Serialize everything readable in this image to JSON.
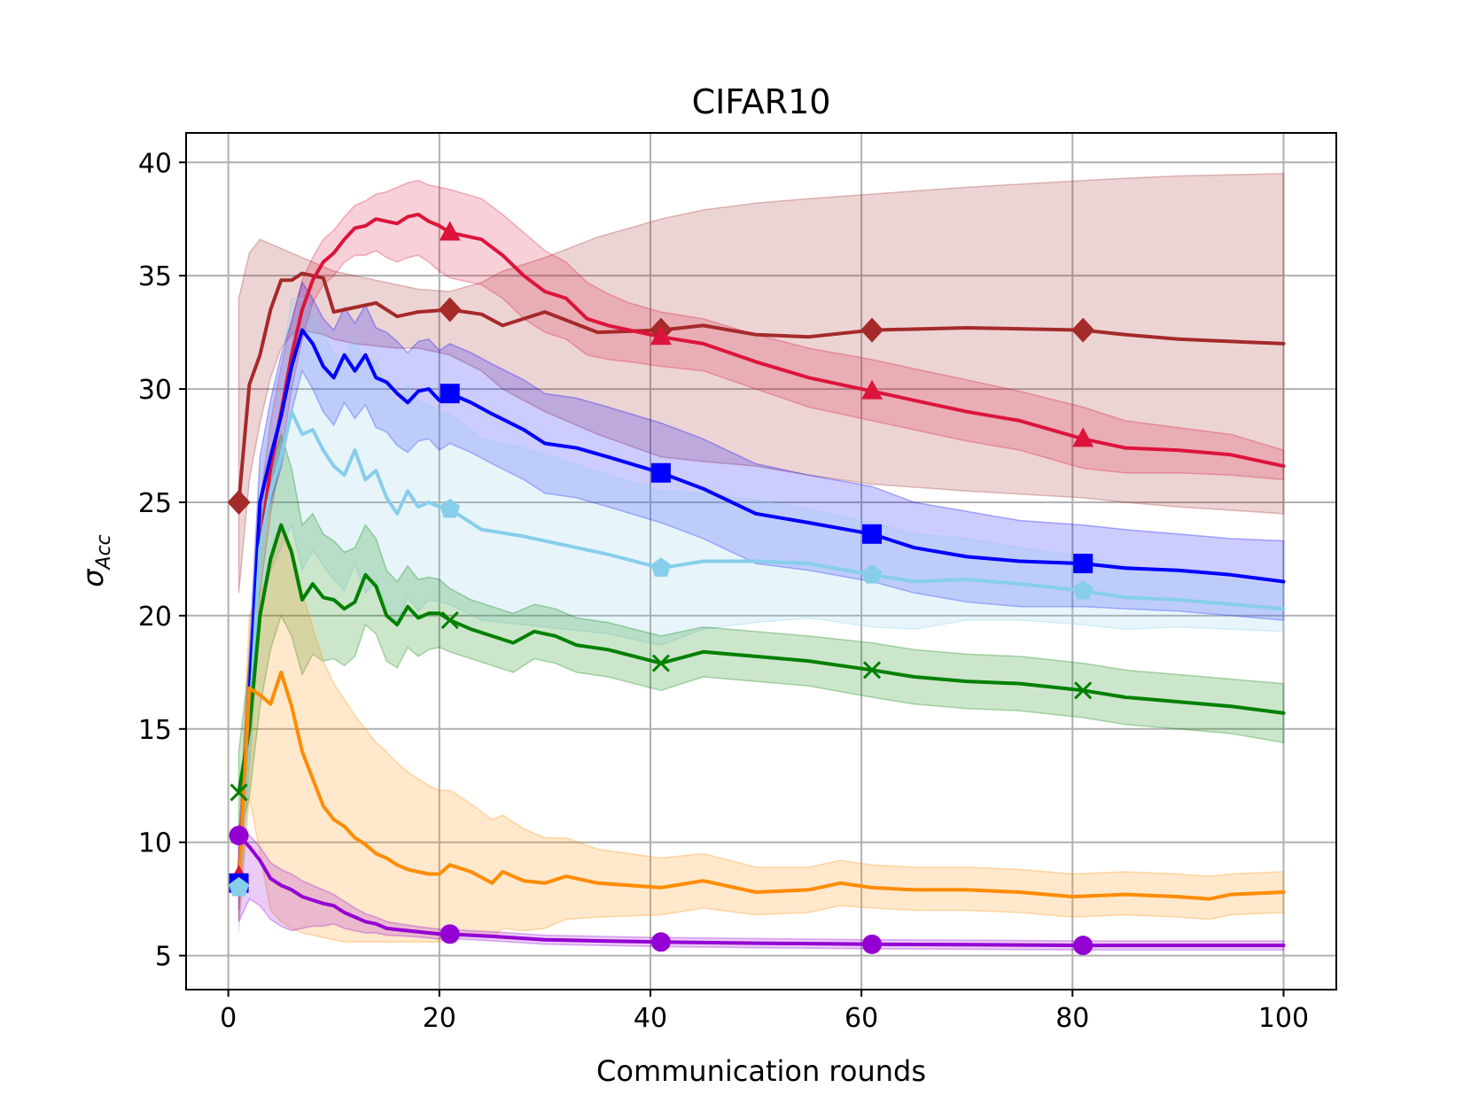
{
  "chart_data": {
    "type": "line",
    "title": "CIFAR10",
    "xlabel": "Communication rounds",
    "ylabel": "σ",
    "ylabel_subscript": "Acc",
    "xlim": [
      -4,
      105
    ],
    "ylim": [
      3.5,
      41.3
    ],
    "xticks": [
      0,
      20,
      40,
      60,
      80,
      100
    ],
    "yticks": [
      5,
      10,
      15,
      20,
      25,
      30,
      35,
      40
    ],
    "grid": true,
    "marker_x": [
      1,
      21,
      41,
      61,
      81
    ],
    "series": [
      {
        "name": "dark-red-diamond",
        "color": "#a52a2a",
        "marker": "diamond",
        "x": [
          1,
          2,
          3,
          4,
          5,
          6,
          7,
          8,
          9,
          10,
          12,
          14,
          16,
          18,
          21,
          24,
          26,
          30,
          35,
          41,
          45,
          50,
          55,
          61,
          70,
          81,
          85,
          90,
          100
        ],
        "y": [
          25,
          30.2,
          31.5,
          33.5,
          34.8,
          34.8,
          35.1,
          35,
          34.9,
          33.4,
          33.6,
          33.8,
          33.2,
          33.4,
          33.5,
          33.3,
          32.8,
          33.4,
          32.5,
          32.6,
          32.8,
          32.4,
          32.3,
          32.6,
          32.7,
          32.6,
          32.4,
          32.2,
          32
        ],
        "upper": [
          34,
          36,
          36.6,
          36.4,
          36.2,
          36,
          35.8,
          35.6,
          35.4,
          35.2,
          35,
          34.8,
          34.6,
          34.4,
          34.3,
          34.7,
          35.2,
          35.8,
          36.7,
          37.5,
          37.9,
          38.2,
          38.4,
          38.6,
          38.9,
          39.2,
          39.3,
          39.4,
          39.5
        ],
        "lower": [
          21,
          26,
          28.5,
          30.5,
          31.8,
          32.4,
          32.6,
          32.5,
          32.4,
          32.2,
          32,
          31.9,
          31.8,
          31.8,
          31.5,
          30.8,
          30,
          29,
          28,
          27,
          26.8,
          26.6,
          26.2,
          25.8,
          25.5,
          25.2,
          25,
          24.8,
          24.5
        ]
      },
      {
        "name": "crimson-triangle",
        "color": "#dc143c",
        "marker": "triangle",
        "x": [
          1,
          2,
          3,
          4,
          5,
          6,
          7,
          8,
          9,
          10,
          11,
          12,
          13,
          14,
          15,
          16,
          17,
          18,
          19,
          20,
          21,
          24,
          26,
          28,
          30,
          32,
          34,
          36,
          38,
          41,
          45,
          50,
          55,
          61,
          65,
          70,
          75,
          81,
          85,
          90,
          95,
          100
        ],
        "y": [
          8.5,
          16,
          23,
          26.5,
          29,
          31.5,
          33.5,
          34.8,
          35.6,
          36,
          36.6,
          37.1,
          37.2,
          37.5,
          37.4,
          37.3,
          37.6,
          37.7,
          37.4,
          37.2,
          36.9,
          36.6,
          35.9,
          35,
          34.3,
          34,
          33.1,
          32.8,
          32.6,
          32.3,
          32,
          31.2,
          30.5,
          29.9,
          29.5,
          29,
          28.6,
          27.8,
          27.4,
          27.3,
          27.1,
          26.6
        ],
        "upper": [
          10,
          18,
          25,
          28.5,
          31,
          33,
          34.8,
          35.8,
          36.6,
          37,
          37.6,
          38.1,
          38.3,
          38.6,
          38.7,
          38.9,
          39.1,
          39.2,
          39,
          38.9,
          38.8,
          38.4,
          37.7,
          36.9,
          36.1,
          35.6,
          34.7,
          34.2,
          33.8,
          33.4,
          33.1,
          32.4,
          31.8,
          31.3,
          30.9,
          30.4,
          29.9,
          29.2,
          28.6,
          28.3,
          28,
          27.3
        ],
        "lower": [
          7,
          14,
          21,
          24.5,
          27,
          30,
          32.2,
          33.8,
          34.6,
          35,
          35.6,
          35.9,
          35.9,
          36.1,
          35.8,
          35.6,
          35.8,
          35.9,
          35.6,
          35.2,
          34.9,
          34.6,
          34,
          33.1,
          32.5,
          32.2,
          31.5,
          31.3,
          31.2,
          31,
          30.8,
          30,
          29.2,
          28.6,
          28.2,
          27.7,
          27.3,
          26.5,
          26.3,
          26.3,
          26.2,
          26
        ]
      },
      {
        "name": "blue-square",
        "color": "#0000ff",
        "marker": "square",
        "x": [
          1,
          2,
          3,
          4,
          5,
          6,
          7,
          8,
          9,
          10,
          11,
          12,
          13,
          14,
          15,
          16,
          17,
          18,
          19,
          20,
          21,
          23,
          25,
          28,
          30,
          33,
          36,
          41,
          45,
          50,
          55,
          61,
          65,
          70,
          75,
          81,
          85,
          90,
          95,
          100
        ],
        "y": [
          8.2,
          16.5,
          25,
          27,
          28.8,
          31,
          32.6,
          32,
          31,
          30.5,
          31.5,
          30.8,
          31.5,
          30.5,
          30.3,
          29.8,
          29.4,
          29.9,
          30,
          29.5,
          29.8,
          29.4,
          28.9,
          28.2,
          27.6,
          27.4,
          27,
          26.3,
          25.6,
          24.5,
          24.1,
          23.6,
          23,
          22.6,
          22.4,
          22.3,
          22.1,
          22,
          21.8,
          21.5
        ],
        "upper": [
          10,
          18.5,
          27,
          29.5,
          31.5,
          33,
          34.7,
          34,
          33.1,
          32.6,
          33.6,
          32.9,
          33.7,
          32.7,
          32.5,
          32.1,
          31.6,
          32.1,
          32.2,
          31.7,
          32,
          31.6,
          31.1,
          30.4,
          29.8,
          29.6,
          29.2,
          28.5,
          27.8,
          26.7,
          26.2,
          25.7,
          25,
          24.6,
          24.2,
          24,
          23.8,
          23.6,
          23.4,
          23.3
        ],
        "lower": [
          7,
          15,
          23,
          25,
          26.5,
          29,
          30.8,
          30,
          29,
          28.4,
          29.4,
          28.7,
          29.3,
          28.3,
          28.1,
          27.5,
          27.2,
          27.7,
          27.8,
          27.3,
          27.6,
          27.2,
          26.7,
          26,
          25.4,
          25.2,
          24.8,
          24.1,
          23.4,
          22.3,
          22,
          21.5,
          21,
          20.6,
          20.4,
          20.4,
          20.3,
          20.2,
          20,
          19.8
        ]
      },
      {
        "name": "skyblue-pentagon",
        "color": "#87ceeb",
        "marker": "pentagon",
        "x": [
          1,
          2,
          3,
          4,
          5,
          6,
          7,
          8,
          9,
          10,
          11,
          12,
          13,
          14,
          15,
          16,
          17,
          18,
          19,
          20,
          21,
          24,
          28,
          32,
          36,
          41,
          45,
          50,
          55,
          61,
          65,
          70,
          75,
          81,
          85,
          90,
          95,
          100
        ],
        "y": [
          8,
          15,
          23,
          25.5,
          27,
          29,
          28,
          28.2,
          27.3,
          26.6,
          26.2,
          27.3,
          26,
          26.4,
          25.2,
          24.5,
          25.5,
          24.8,
          25,
          24.8,
          24.7,
          23.8,
          23.5,
          23.1,
          22.7,
          22.1,
          22.4,
          22.4,
          22.3,
          21.8,
          21.5,
          21.6,
          21.4,
          21.1,
          20.8,
          20.7,
          20.5,
          20.3
        ],
        "upper": [
          10,
          17,
          26,
          29,
          31,
          34,
          34,
          33.5,
          32.4,
          31.6,
          31.3,
          32.3,
          31,
          31.3,
          30,
          29.3,
          30.2,
          29.4,
          29.3,
          29,
          28.9,
          27.8,
          27.4,
          26.8,
          26.2,
          25.5,
          25.4,
          25.1,
          24.7,
          24.1,
          23.6,
          23.4,
          23,
          22.6,
          22.2,
          21.9,
          21.6,
          21.3
        ],
        "lower": [
          6,
          13,
          20,
          22,
          23,
          24,
          22,
          22.9,
          22.2,
          21.6,
          21.1,
          22.3,
          21,
          21.5,
          20.4,
          19.7,
          20.8,
          20.2,
          20.7,
          20.6,
          20.5,
          19.8,
          19.6,
          19.4,
          19.2,
          18.7,
          19.4,
          19.7,
          19.9,
          19.5,
          19.4,
          19.8,
          19.8,
          19.6,
          19.4,
          19.5,
          19.4,
          19.3
        ]
      },
      {
        "name": "green-x",
        "color": "#008000",
        "marker": "x",
        "x": [
          1,
          2,
          3,
          4,
          5,
          6,
          7,
          8,
          9,
          10,
          11,
          12,
          13,
          14,
          15,
          16,
          17,
          18,
          19,
          20,
          21,
          23,
          25,
          27,
          29,
          31,
          33,
          36,
          41,
          45,
          50,
          55,
          61,
          65,
          70,
          75,
          81,
          85,
          90,
          95,
          100
        ],
        "y": [
          12.2,
          15,
          20,
          22.5,
          24,
          22.8,
          20.7,
          21.4,
          20.8,
          20.7,
          20.3,
          20.6,
          21.8,
          21.3,
          20,
          19.6,
          20.4,
          19.9,
          20.1,
          20.1,
          19.8,
          19.4,
          19.1,
          18.8,
          19.3,
          19.1,
          18.7,
          18.5,
          17.9,
          18.4,
          18.2,
          18,
          17.6,
          17.3,
          17.1,
          17,
          16.7,
          16.4,
          16.2,
          16,
          15.7
        ],
        "upper": [
          14,
          18,
          24,
          26.5,
          28,
          26.5,
          24,
          24.5,
          23.6,
          23.3,
          22.8,
          23,
          24,
          23.4,
          22,
          21.5,
          22.2,
          21.6,
          21.7,
          21.6,
          21.2,
          20.7,
          20.4,
          20.1,
          20.5,
          20.3,
          19.9,
          19.7,
          19.1,
          19.5,
          19.3,
          19.1,
          18.8,
          18.5,
          18.3,
          18.2,
          17.9,
          17.6,
          17.4,
          17.2,
          17
        ],
        "lower": [
          10,
          12,
          16,
          18.5,
          20,
          19.1,
          17.4,
          18.3,
          18,
          18.1,
          17.8,
          18.2,
          19.6,
          19.2,
          18,
          17.7,
          18.6,
          18.2,
          18.5,
          18.6,
          18.4,
          18.1,
          17.8,
          17.5,
          18.1,
          17.9,
          17.5,
          17.3,
          16.7,
          17.3,
          17.1,
          16.9,
          16.4,
          16.1,
          15.9,
          15.8,
          15.5,
          15.2,
          15,
          14.8,
          14.4
        ]
      },
      {
        "name": "orange-line",
        "color": "#ff8c00",
        "marker": "none",
        "x": [
          1,
          2,
          3,
          4,
          5,
          6,
          7,
          8,
          9,
          10,
          11,
          12,
          13,
          14,
          15,
          16,
          17,
          18,
          19,
          20,
          21,
          23,
          25,
          26,
          28,
          30,
          32,
          35,
          41,
          45,
          50,
          55,
          58,
          61,
          65,
          70,
          75,
          80,
          85,
          90,
          93,
          95,
          100
        ],
        "y": [
          8,
          16.8,
          16.5,
          16.1,
          17.5,
          16,
          14,
          12.8,
          11.6,
          11,
          10.7,
          10.2,
          9.9,
          9.5,
          9.3,
          9,
          8.8,
          8.7,
          8.6,
          8.6,
          9,
          8.7,
          8.2,
          8.7,
          8.3,
          8.2,
          8.5,
          8.2,
          8,
          8.3,
          7.8,
          7.9,
          8.2,
          8,
          7.9,
          7.9,
          7.8,
          7.6,
          7.7,
          7.6,
          7.5,
          7.7,
          7.8
        ],
        "upper": [
          10,
          20,
          21,
          22,
          24,
          23,
          21,
          19.5,
          18,
          17,
          16.3,
          15.6,
          15,
          14.4,
          14,
          13.5,
          13.1,
          12.8,
          12.5,
          12.3,
          12.3,
          11.7,
          11,
          11.2,
          10.6,
          10.2,
          10.2,
          9.7,
          9.3,
          9.5,
          8.9,
          8.9,
          9.2,
          9,
          8.9,
          8.9,
          8.8,
          8.6,
          8.7,
          8.6,
          8.5,
          8.6,
          8.7
        ],
        "lower": [
          6.5,
          12,
          9.5,
          7,
          6.5,
          6.2,
          6,
          5.9,
          5.8,
          5.7,
          5.6,
          5.6,
          5.6,
          5.6,
          5.6,
          5.6,
          5.6,
          5.6,
          5.6,
          5.6,
          5.8,
          5.9,
          5.8,
          6.2,
          6.1,
          6.2,
          6.6,
          6.7,
          6.8,
          7.1,
          6.8,
          6.9,
          7.2,
          7.1,
          7,
          7,
          6.9,
          6.7,
          6.8,
          6.7,
          6.6,
          6.8,
          6.9
        ]
      },
      {
        "name": "purple-circle",
        "color": "#9400d3",
        "marker": "circle",
        "x": [
          1,
          2,
          3,
          4,
          5,
          6,
          7,
          8,
          9,
          10,
          11,
          12,
          13,
          14,
          15,
          16,
          17,
          18,
          19,
          20,
          21,
          25,
          30,
          35,
          41,
          50,
          61,
          70,
          81,
          90,
          100
        ],
        "y": [
          10.3,
          9.8,
          9.2,
          8.4,
          8.1,
          7.9,
          7.6,
          7.45,
          7.3,
          7.2,
          6.9,
          6.7,
          6.5,
          6.4,
          6.2,
          6.15,
          6.1,
          6.05,
          6,
          5.95,
          5.95,
          5.85,
          5.7,
          5.65,
          5.6,
          5.55,
          5.5,
          5.48,
          5.45,
          5.45,
          5.45
        ],
        "upper": [
          10.8,
          10.3,
          9.8,
          9.1,
          8.8,
          8.6,
          8.3,
          8.1,
          7.9,
          7.7,
          7.4,
          7.1,
          6.85,
          6.7,
          6.5,
          6.42,
          6.35,
          6.28,
          6.22,
          6.17,
          6.15,
          6.05,
          5.9,
          5.85,
          5.8,
          5.75,
          5.7,
          5.68,
          5.65,
          5.65,
          5.65
        ],
        "lower": [
          6.5,
          7.5,
          7.2,
          6.6,
          6.3,
          6.1,
          6.2,
          6.3,
          6.3,
          6.4,
          6.2,
          6.1,
          6,
          6,
          5.9,
          5.88,
          5.85,
          5.82,
          5.78,
          5.73,
          5.75,
          5.65,
          5.5,
          5.45,
          5.4,
          5.35,
          5.3,
          5.28,
          5.25,
          5.25,
          5.25
        ]
      }
    ]
  }
}
